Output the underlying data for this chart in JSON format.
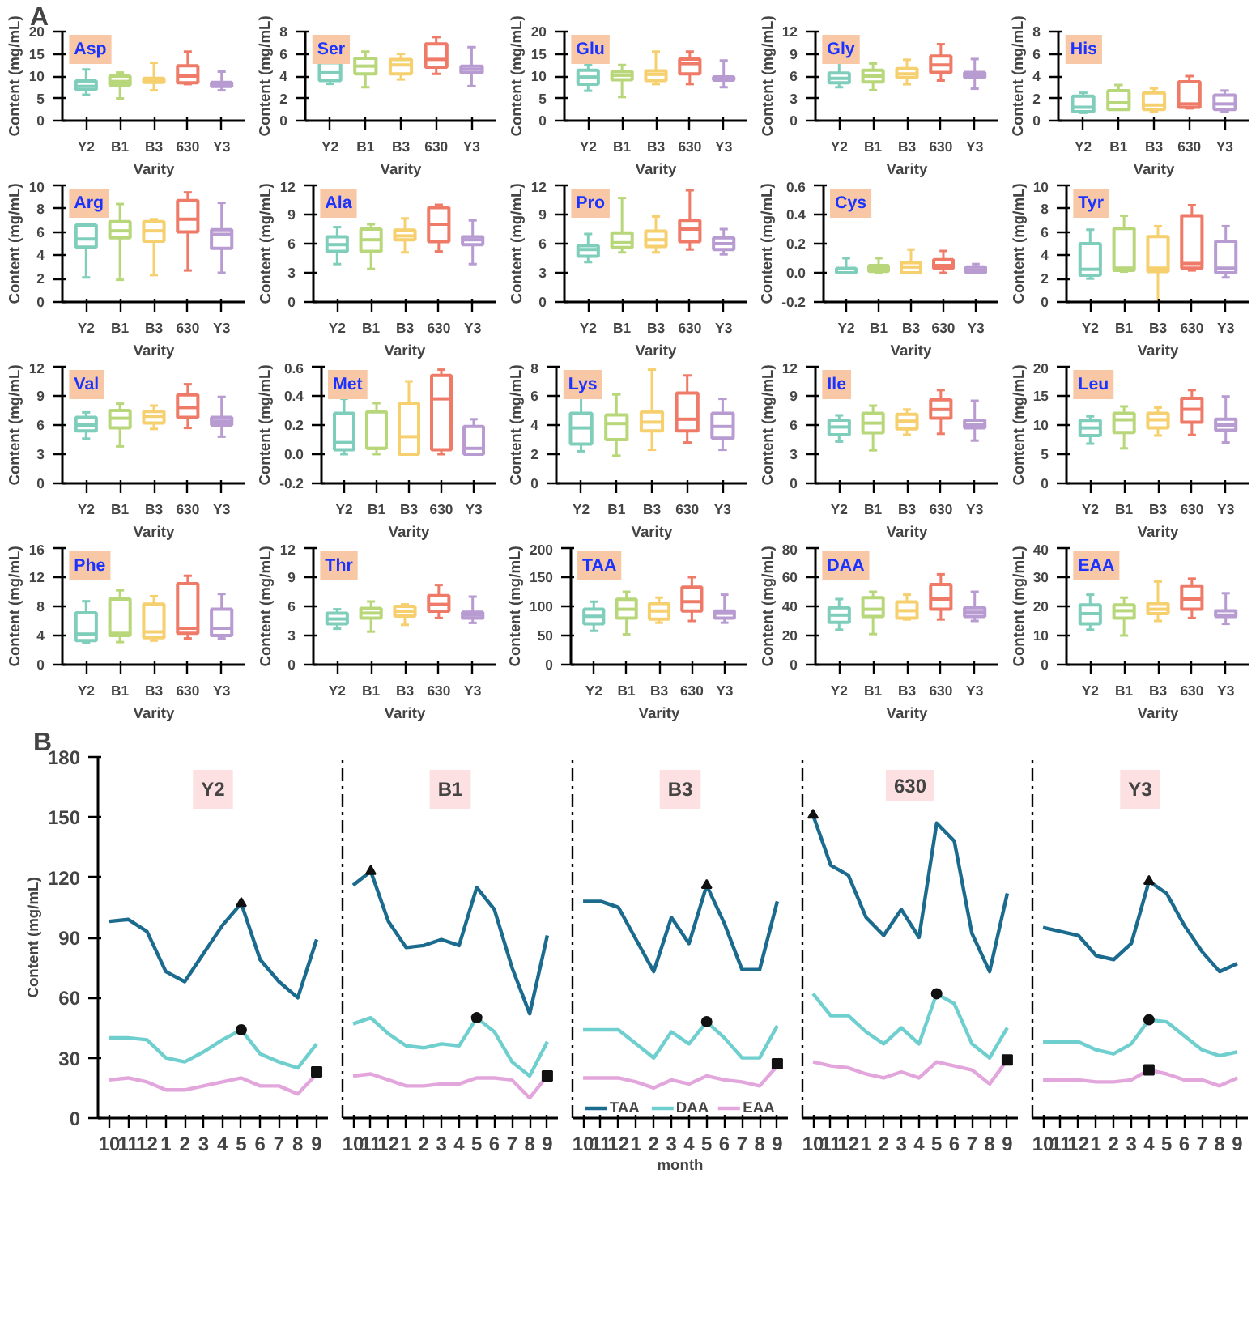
{
  "chart_data": [
    {
      "type": "box",
      "title": "Asp",
      "annotations": [
        "A"
      ],
      "xlabel": "Varity",
      "ylabel": "Content (mg/mL)",
      "categories": [
        "Y2",
        "B1",
        "B3",
        "630",
        "Y3"
      ],
      "colors": [
        "#7fcdbb",
        "#b7d77a",
        "#f6cf6e",
        "#ee7a67",
        "#b79bd1"
      ],
      "ylim": [
        0,
        20
      ],
      "yticks": [
        0,
        5,
        10,
        15,
        20
      ],
      "boxes": [
        {
          "low": 5.8,
          "q1": 7,
          "median": 7.7,
          "q3": 8.9,
          "high": 11.5
        },
        {
          "low": 5,
          "q1": 8,
          "median": 8.8,
          "q3": 10,
          "high": 10.8
        },
        {
          "low": 6.8,
          "q1": 8.6,
          "median": 9.2,
          "q3": 9.5,
          "high": 13
        },
        {
          "low": 8.2,
          "q1": 8.5,
          "median": 10,
          "q3": 12.3,
          "high": 15.5
        },
        {
          "low": 6.8,
          "q1": 7.7,
          "median": 8.2,
          "q3": 8.6,
          "high": 11
        }
      ]
    },
    {
      "type": "box",
      "title": "Ser",
      "xlabel": "Varity",
      "ylabel": "Content (mg/mL)",
      "categories": [
        "Y2",
        "B1",
        "B3",
        "630",
        "Y3"
      ],
      "colors": [
        "#7fcdbb",
        "#b7d77a",
        "#f6cf6e",
        "#ee7a67",
        "#b79bd1"
      ],
      "ylim": [
        0,
        8
      ],
      "yticks": [
        0,
        2,
        4,
        6,
        8
      ],
      "boxes": [
        {
          "low": 3.3,
          "q1": 3.6,
          "median": 4.3,
          "q3": 5.2,
          "high": 5.6
        },
        {
          "low": 3,
          "q1": 4.2,
          "median": 4.9,
          "q3": 5.6,
          "high": 6.2
        },
        {
          "low": 3.7,
          "q1": 4.2,
          "median": 5,
          "q3": 5.5,
          "high": 6
        },
        {
          "low": 4.2,
          "q1": 4.8,
          "median": 5.5,
          "q3": 6.9,
          "high": 7.5
        },
        {
          "low": 3.1,
          "q1": 4.3,
          "median": 4.6,
          "q3": 4.9,
          "high": 6.6
        }
      ]
    },
    {
      "type": "box",
      "title": "Glu",
      "xlabel": "Varity",
      "ylabel": "Content (mg/mL)",
      "categories": [
        "Y2",
        "B1",
        "B3",
        "630",
        "Y3"
      ],
      "colors": [
        "#7fcdbb",
        "#b7d77a",
        "#f6cf6e",
        "#ee7a67",
        "#b79bd1"
      ],
      "ylim": [
        0,
        20
      ],
      "yticks": [
        0,
        5,
        10,
        15,
        20
      ],
      "boxes": [
        {
          "low": 6.7,
          "q1": 8.2,
          "median": 9.8,
          "q3": 11.3,
          "high": 12.5
        },
        {
          "low": 5.3,
          "q1": 9.2,
          "median": 10.2,
          "q3": 11,
          "high": 12.5
        },
        {
          "low": 8.2,
          "q1": 9,
          "median": 10.4,
          "q3": 11.2,
          "high": 15.5
        },
        {
          "low": 8.2,
          "q1": 10.5,
          "median": 12.8,
          "q3": 13.8,
          "high": 15.5
        },
        {
          "low": 7.5,
          "q1": 9.1,
          "median": 9.5,
          "q3": 9.8,
          "high": 13.5
        }
      ]
    },
    {
      "type": "box",
      "title": "Gly",
      "xlabel": "Varity",
      "ylabel": "Content (mg/mL)",
      "categories": [
        "Y2",
        "B1",
        "B3",
        "630",
        "Y3"
      ],
      "colors": [
        "#7fcdbb",
        "#b7d77a",
        "#f6cf6e",
        "#ee7a67",
        "#b79bd1"
      ],
      "ylim": [
        0,
        12
      ],
      "yticks": [
        0,
        3,
        6,
        9,
        12
      ],
      "boxes": [
        {
          "low": 4.5,
          "q1": 5.1,
          "median": 5.7,
          "q3": 6.4,
          "high": 7.8
        },
        {
          "low": 4.1,
          "q1": 5.2,
          "median": 6,
          "q3": 6.8,
          "high": 7.7
        },
        {
          "low": 4.9,
          "q1": 5.8,
          "median": 6.3,
          "q3": 7,
          "high": 8.2
        },
        {
          "low": 5.4,
          "q1": 6.5,
          "median": 7.5,
          "q3": 8.7,
          "high": 10.3
        },
        {
          "low": 4.3,
          "q1": 5.8,
          "median": 6.1,
          "q3": 6.5,
          "high": 8.3
        }
      ]
    },
    {
      "type": "box",
      "title": "His",
      "xlabel": "Varity",
      "ylabel": "Content (mg/mL)",
      "categories": [
        "Y2",
        "B1",
        "B3",
        "630",
        "Y3"
      ],
      "colors": [
        "#7fcdbb",
        "#b7d77a",
        "#f6cf6e",
        "#ee7a67",
        "#b79bd1"
      ],
      "ylim": [
        0,
        8
      ],
      "yticks": [
        0,
        2,
        4,
        6,
        8
      ],
      "boxes": [
        {
          "low": 0.7,
          "q1": 0.8,
          "median": 1.2,
          "q3": 2.2,
          "high": 2.5
        },
        {
          "low": 1,
          "q1": 1,
          "median": 1.6,
          "q3": 2.7,
          "high": 3.2
        },
        {
          "low": 0.8,
          "q1": 1,
          "median": 1.4,
          "q3": 2.5,
          "high": 2.9
        },
        {
          "low": 1.1,
          "q1": 1.2,
          "median": 1.5,
          "q3": 3.5,
          "high": 4
        },
        {
          "low": 0.8,
          "q1": 1,
          "median": 1.5,
          "q3": 2.3,
          "high": 2.7
        }
      ]
    },
    {
      "type": "box",
      "title": "Arg",
      "xlabel": "Varity",
      "ylabel": "Content (mg/mL)",
      "categories": [
        "Y2",
        "B1",
        "B3",
        "630",
        "Y3"
      ],
      "colors": [
        "#7fcdbb",
        "#b7d77a",
        "#f6cf6e",
        "#ee7a67",
        "#b79bd1"
      ],
      "ylim": [
        0,
        10
      ],
      "yticks": [
        0,
        2,
        4,
        6,
        8,
        10
      ],
      "boxes": [
        {
          "low": 2.1,
          "q1": 4.7,
          "median": 5.4,
          "q3": 6.6,
          "high": 6.7
        },
        {
          "low": 1.9,
          "q1": 5.5,
          "median": 6.1,
          "q3": 6.9,
          "high": 8.4
        },
        {
          "low": 2.3,
          "q1": 5.2,
          "median": 6.1,
          "q3": 6.9,
          "high": 7.1
        },
        {
          "low": 2.7,
          "q1": 6,
          "median": 7.1,
          "q3": 8.7,
          "high": 9.4
        },
        {
          "low": 2.5,
          "q1": 4.6,
          "median": 5.8,
          "q3": 6.2,
          "high": 8.5
        }
      ]
    },
    {
      "type": "box",
      "title": "Ala",
      "xlabel": "Varity",
      "ylabel": "Content (mg/mL)",
      "categories": [
        "Y2",
        "B1",
        "B3",
        "630",
        "Y3"
      ],
      "colors": [
        "#7fcdbb",
        "#b7d77a",
        "#f6cf6e",
        "#ee7a67",
        "#b79bd1"
      ],
      "ylim": [
        0,
        12
      ],
      "yticks": [
        0,
        3,
        6,
        9,
        12
      ],
      "boxes": [
        {
          "low": 3.9,
          "q1": 5.2,
          "median": 5.9,
          "q3": 6.7,
          "high": 7.7
        },
        {
          "low": 3.4,
          "q1": 5.2,
          "median": 6.4,
          "q3": 7.5,
          "high": 8
        },
        {
          "low": 5.1,
          "q1": 6.4,
          "median": 6.8,
          "q3": 7.4,
          "high": 8.6
        },
        {
          "low": 5.2,
          "q1": 6.2,
          "median": 8,
          "q3": 9.7,
          "high": 10
        },
        {
          "low": 3.9,
          "q1": 5.9,
          "median": 6.4,
          "q3": 6.7,
          "high": 8.4
        }
      ]
    },
    {
      "type": "box",
      "title": "Pro",
      "xlabel": "Varity",
      "ylabel": "Content (mg/mL)",
      "categories": [
        "Y2",
        "B1",
        "B3",
        "630",
        "Y3"
      ],
      "colors": [
        "#7fcdbb",
        "#b7d77a",
        "#f6cf6e",
        "#ee7a67",
        "#b79bd1"
      ],
      "ylim": [
        0,
        12
      ],
      "yticks": [
        0,
        3,
        6,
        9,
        12
      ],
      "boxes": [
        {
          "low": 4.1,
          "q1": 4.7,
          "median": 5.4,
          "q3": 5.8,
          "high": 7
        },
        {
          "low": 5.1,
          "q1": 5.6,
          "median": 6.1,
          "q3": 7.1,
          "high": 10.7
        },
        {
          "low": 5.1,
          "q1": 5.7,
          "median": 6.4,
          "q3": 7.3,
          "high": 8.8
        },
        {
          "low": 5.4,
          "q1": 6.2,
          "median": 7.5,
          "q3": 8.4,
          "high": 11.5
        },
        {
          "low": 4.9,
          "q1": 5.4,
          "median": 6,
          "q3": 6.6,
          "high": 7.5
        }
      ]
    },
    {
      "type": "box",
      "title": "Cys",
      "xlabel": "Varity",
      "ylabel": "Content (mg/mL)",
      "categories": [
        "Y2",
        "B1",
        "B3",
        "630",
        "Y3"
      ],
      "colors": [
        "#7fcdbb",
        "#b7d77a",
        "#f6cf6e",
        "#ee7a67",
        "#b79bd1"
      ],
      "ylim": [
        -0.2,
        0.6
      ],
      "yticks": [
        {
          "value": -0.2,
          "label": "-0.2"
        },
        {
          "value": 0,
          "label": "0.0"
        },
        {
          "value": 0.2,
          "label": "0.2"
        },
        {
          "value": 0.4,
          "label": "0.4"
        },
        {
          "value": 0.6,
          "label": "0.6"
        }
      ],
      "boxes": [
        {
          "low": 0,
          "q1": 0,
          "median": 0,
          "q3": 0.03,
          "high": 0.1
        },
        {
          "low": 0,
          "q1": 0.01,
          "median": 0.03,
          "q3": 0.05,
          "high": 0.1
        },
        {
          "low": 0,
          "q1": 0,
          "median": 0.04,
          "q3": 0.07,
          "high": 0.16
        },
        {
          "low": 0,
          "q1": 0.03,
          "median": 0.05,
          "q3": 0.09,
          "high": 0.15
        },
        {
          "low": 0,
          "q1": 0,
          "median": 0.02,
          "q3": 0.04,
          "high": 0.06
        }
      ]
    },
    {
      "type": "box",
      "title": "Tyr",
      "xlabel": "Varity",
      "ylabel": "Content (mg/mL)",
      "categories": [
        "Y2",
        "B1",
        "B3",
        "630",
        "Y3"
      ],
      "colors": [
        "#7fcdbb",
        "#b7d77a",
        "#f6cf6e",
        "#ee7a67",
        "#b79bd1"
      ],
      "ylim": [
        0,
        10
      ],
      "yticks": [
        0,
        2,
        4,
        6,
        8,
        10
      ],
      "boxes": [
        {
          "low": 2,
          "q1": 2.3,
          "median": 2.8,
          "q3": 5,
          "high": 6.2
        },
        {
          "low": 2.6,
          "q1": 2.7,
          "median": 2.9,
          "q3": 6.3,
          "high": 7.4
        },
        {
          "low": 0,
          "q1": 2.6,
          "median": 2.9,
          "q3": 5.6,
          "high": 6.5
        },
        {
          "low": 2.7,
          "q1": 2.9,
          "median": 3.3,
          "q3": 7.4,
          "high": 8.3
        },
        {
          "low": 2.1,
          "q1": 2.5,
          "median": 2.9,
          "q3": 5.2,
          "high": 6.5
        }
      ]
    },
    {
      "type": "box",
      "title": "Val",
      "xlabel": "Varity",
      "ylabel": "Content (mg/mL)",
      "categories": [
        "Y2",
        "B1",
        "B3",
        "630",
        "Y3"
      ],
      "colors": [
        "#7fcdbb",
        "#b7d77a",
        "#f6cf6e",
        "#ee7a67",
        "#b79bd1"
      ],
      "ylim": [
        0,
        12
      ],
      "yticks": [
        0,
        3,
        6,
        9,
        12
      ],
      "boxes": [
        {
          "low": 4.6,
          "q1": 5.4,
          "median": 6,
          "q3": 6.8,
          "high": 7.3
        },
        {
          "low": 3.8,
          "q1": 5.7,
          "median": 6.7,
          "q3": 7.5,
          "high": 8.2
        },
        {
          "low": 5.6,
          "q1": 6.2,
          "median": 6.9,
          "q3": 7.4,
          "high": 8
        },
        {
          "low": 5.7,
          "q1": 6.8,
          "median": 7.8,
          "q3": 9.1,
          "high": 10.2
        },
        {
          "low": 4.8,
          "q1": 6,
          "median": 6.4,
          "q3": 6.8,
          "high": 8.9
        }
      ]
    },
    {
      "type": "box",
      "title": "Met",
      "xlabel": "Varity",
      "ylabel": "Content (mg/mL)",
      "categories": [
        "Y2",
        "B1",
        "B3",
        "630",
        "Y3"
      ],
      "colors": [
        "#7fcdbb",
        "#b7d77a",
        "#f6cf6e",
        "#ee7a67",
        "#b79bd1"
      ],
      "ylim": [
        -0.2,
        0.6
      ],
      "yticks": [
        {
          "value": -0.2,
          "label": "-0.2"
        },
        {
          "value": 0,
          "label": "0.0"
        },
        {
          "value": 0.2,
          "label": "0.2"
        },
        {
          "value": 0.4,
          "label": "0.4"
        },
        {
          "value": 0.6,
          "label": "0.6"
        }
      ],
      "boxes": [
        {
          "low": 0,
          "q1": 0.03,
          "median": 0.08,
          "q3": 0.28,
          "high": 0.38
        },
        {
          "low": 0,
          "q1": 0.04,
          "median": 0.04,
          "q3": 0.29,
          "high": 0.35
        },
        {
          "low": 0,
          "q1": 0,
          "median": 0.12,
          "q3": 0.35,
          "high": 0.5
        },
        {
          "low": 0,
          "q1": 0.03,
          "median": 0.38,
          "q3": 0.54,
          "high": 0.58
        },
        {
          "low": 0,
          "q1": 0,
          "median": 0.04,
          "q3": 0.19,
          "high": 0.24
        }
      ]
    },
    {
      "type": "box",
      "title": "Lys",
      "xlabel": "Varity",
      "ylabel": "Content (mg/mL)",
      "categories": [
        "Y2",
        "B1",
        "B3",
        "630",
        "Y3"
      ],
      "colors": [
        "#7fcdbb",
        "#b7d77a",
        "#f6cf6e",
        "#ee7a67",
        "#b79bd1"
      ],
      "ylim": [
        0,
        8
      ],
      "yticks": [
        0,
        2,
        4,
        6,
        8
      ],
      "boxes": [
        {
          "low": 2.2,
          "q1": 2.7,
          "median": 3.8,
          "q3": 4.8,
          "high": 7.4
        },
        {
          "low": 1.9,
          "q1": 3,
          "median": 4.1,
          "q3": 4.7,
          "high": 6.1
        },
        {
          "low": 2.3,
          "q1": 3.6,
          "median": 4.2,
          "q3": 4.9,
          "high": 7.8
        },
        {
          "low": 2.8,
          "q1": 3.6,
          "median": 4.4,
          "q3": 6.2,
          "high": 7.4
        },
        {
          "low": 2.3,
          "q1": 3.1,
          "median": 3.9,
          "q3": 4.8,
          "high": 5.8
        }
      ]
    },
    {
      "type": "box",
      "title": "Ile",
      "xlabel": "Varity",
      "ylabel": "Content (mg/mL)",
      "categories": [
        "Y2",
        "B1",
        "B3",
        "630",
        "Y3"
      ],
      "colors": [
        "#7fcdbb",
        "#b7d77a",
        "#f6cf6e",
        "#ee7a67",
        "#b79bd1"
      ],
      "ylim": [
        0,
        12
      ],
      "yticks": [
        0,
        3,
        6,
        9,
        12
      ],
      "boxes": [
        {
          "low": 4.3,
          "q1": 5,
          "median": 5.8,
          "q3": 6.5,
          "high": 7
        },
        {
          "low": 3.4,
          "q1": 5.2,
          "median": 6.2,
          "q3": 7.2,
          "high": 8
        },
        {
          "low": 5,
          "q1": 5.6,
          "median": 6.4,
          "q3": 7.1,
          "high": 7.6
        },
        {
          "low": 5.1,
          "q1": 6.7,
          "median": 7.6,
          "q3": 8.6,
          "high": 9.6
        },
        {
          "low": 4.4,
          "q1": 5.7,
          "median": 6,
          "q3": 6.5,
          "high": 8.5
        }
      ]
    },
    {
      "type": "box",
      "title": "Leu",
      "xlabel": "Varity",
      "ylabel": "Content (mg/mL)",
      "categories": [
        "Y2",
        "B1",
        "B3",
        "630",
        "Y3"
      ],
      "colors": [
        "#7fcdbb",
        "#b7d77a",
        "#f6cf6e",
        "#ee7a67",
        "#b79bd1"
      ],
      "ylim": [
        0,
        20
      ],
      "yticks": [
        0,
        5,
        10,
        15,
        20
      ],
      "boxes": [
        {
          "low": 6.8,
          "q1": 8.2,
          "median": 9.5,
          "q3": 10.8,
          "high": 11.5
        },
        {
          "low": 6,
          "q1": 8.7,
          "median": 10.9,
          "q3": 12,
          "high": 13.2
        },
        {
          "low": 8.2,
          "q1": 9.5,
          "median": 10.9,
          "q3": 12,
          "high": 13
        },
        {
          "low": 8.3,
          "q1": 10.5,
          "median": 12.7,
          "q3": 14.6,
          "high": 16
        },
        {
          "low": 7,
          "q1": 9.1,
          "median": 10,
          "q3": 11,
          "high": 14.9
        }
      ]
    },
    {
      "type": "box",
      "title": "Phe",
      "xlabel": "Varity",
      "ylabel": "Content (mg/mL)",
      "categories": [
        "Y2",
        "B1",
        "B3",
        "630",
        "Y3"
      ],
      "colors": [
        "#7fcdbb",
        "#b7d77a",
        "#f6cf6e",
        "#ee7a67",
        "#b79bd1"
      ],
      "ylim": [
        0,
        16
      ],
      "yticks": [
        0,
        4,
        8,
        12,
        16
      ],
      "boxes": [
        {
          "low": 3,
          "q1": 3.3,
          "median": 4.2,
          "q3": 7.1,
          "high": 8.7
        },
        {
          "low": 3.1,
          "q1": 4,
          "median": 4.3,
          "q3": 9,
          "high": 10.2
        },
        {
          "low": 3.3,
          "q1": 3.7,
          "median": 4.5,
          "q3": 8.3,
          "high": 9.4
        },
        {
          "low": 3.6,
          "q1": 4.3,
          "median": 5,
          "q3": 11.1,
          "high": 12.2
        },
        {
          "low": 3.6,
          "q1": 4,
          "median": 5,
          "q3": 7.6,
          "high": 9.7
        }
      ]
    },
    {
      "type": "box",
      "title": "Thr",
      "xlabel": "Varity",
      "ylabel": "Content (mg/mL)",
      "categories": [
        "Y2",
        "B1",
        "B3",
        "630",
        "Y3"
      ],
      "colors": [
        "#7fcdbb",
        "#b7d77a",
        "#f6cf6e",
        "#ee7a67",
        "#b79bd1"
      ],
      "ylim": [
        0,
        12
      ],
      "yticks": [
        0,
        3,
        6,
        9,
        12
      ],
      "boxes": [
        {
          "low": 3.7,
          "q1": 4.2,
          "median": 4.7,
          "q3": 5.3,
          "high": 5.7
        },
        {
          "low": 3.4,
          "q1": 4.8,
          "median": 5.3,
          "q3": 5.8,
          "high": 6.5
        },
        {
          "low": 4.1,
          "q1": 5,
          "median": 5.5,
          "q3": 6,
          "high": 6.2
        },
        {
          "low": 4.8,
          "q1": 5.5,
          "median": 6.2,
          "q3": 7.1,
          "high": 8.2
        },
        {
          "low": 4.3,
          "q1": 4.8,
          "median": 5.1,
          "q3": 5.4,
          "high": 7
        }
      ]
    },
    {
      "type": "box",
      "title": "TAA",
      "xlabel": "Varity",
      "ylabel": "Content (mg/mL)",
      "categories": [
        "Y2",
        "B1",
        "B3",
        "630",
        "Y3"
      ],
      "colors": [
        "#7fcdbb",
        "#b7d77a",
        "#f6cf6e",
        "#ee7a67",
        "#b79bd1"
      ],
      "ylim": [
        0,
        200
      ],
      "yticks": [
        0,
        50,
        100,
        150,
        200
      ],
      "boxes": [
        {
          "low": 58,
          "q1": 70,
          "median": 83,
          "q3": 95,
          "high": 108
        },
        {
          "low": 52,
          "q1": 80,
          "median": 95,
          "q3": 112,
          "high": 125
        },
        {
          "low": 72,
          "q1": 78,
          "median": 92,
          "q3": 105,
          "high": 115
        },
        {
          "low": 75,
          "q1": 92,
          "median": 108,
          "q3": 133,
          "high": 150
        },
        {
          "low": 72,
          "q1": 80,
          "median": 88,
          "q3": 92,
          "high": 120
        }
      ]
    },
    {
      "type": "box",
      "title": "DAA",
      "xlabel": "Varity",
      "ylabel": "Content (mg/mL)",
      "categories": [
        "Y2",
        "B1",
        "B3",
        "630",
        "Y3"
      ],
      "colors": [
        "#7fcdbb",
        "#b7d77a",
        "#f6cf6e",
        "#ee7a67",
        "#b79bd1"
      ],
      "ylim": [
        0,
        80
      ],
      "yticks": [
        0,
        20,
        40,
        60,
        80
      ],
      "boxes": [
        {
          "low": 24,
          "q1": 29,
          "median": 34,
          "q3": 39,
          "high": 45
        },
        {
          "low": 21,
          "q1": 33,
          "median": 38,
          "q3": 46,
          "high": 50
        },
        {
          "low": 31,
          "q1": 32,
          "median": 37,
          "q3": 43,
          "high": 48
        },
        {
          "low": 31,
          "q1": 38,
          "median": 45,
          "q3": 55,
          "high": 62
        },
        {
          "low": 30,
          "q1": 33,
          "median": 36,
          "q3": 39,
          "high": 50
        }
      ]
    },
    {
      "type": "box",
      "title": "EAA",
      "xlabel": "Varity",
      "ylabel": "Content (mg/mL)",
      "categories": [
        "Y2",
        "B1",
        "B3",
        "630",
        "Y3"
      ],
      "colors": [
        "#7fcdbb",
        "#b7d77a",
        "#f6cf6e",
        "#ee7a67",
        "#b79bd1"
      ],
      "ylim": [
        0,
        40
      ],
      "yticks": [
        0,
        10,
        20,
        30,
        40
      ],
      "boxes": [
        {
          "low": 12,
          "q1": 14,
          "median": 17.5,
          "q3": 20.5,
          "high": 24
        },
        {
          "low": 10,
          "q1": 16,
          "median": 18.5,
          "q3": 20.5,
          "high": 23
        },
        {
          "low": 15,
          "q1": 17.5,
          "median": 19,
          "q3": 21,
          "high": 28.5
        },
        {
          "low": 16,
          "q1": 19,
          "median": 22.5,
          "q3": 27,
          "high": 29.5
        },
        {
          "low": 14,
          "q1": 16.5,
          "median": 17,
          "q3": 18.5,
          "high": 24.5
        }
      ]
    },
    {
      "type": "line",
      "title": "Y2",
      "annotations": [
        "B"
      ],
      "ylabel": "Content (mg/mL)",
      "ylim": [
        0,
        180
      ],
      "yticks": [
        0,
        30,
        60,
        90,
        120,
        150,
        180
      ],
      "categories": [
        "10",
        "11",
        "12",
        "1",
        "2",
        "3",
        "4",
        "5",
        "6",
        "7",
        "8",
        "9"
      ],
      "series": [
        {
          "color": "#1b6b8f",
          "values": [
            98,
            99,
            93,
            73,
            68,
            82,
            96,
            107,
            79,
            68,
            60,
            89
          ]
        },
        {
          "color": "#6fcfcf",
          "values": [
            40,
            40,
            39,
            30,
            28,
            33,
            39,
            44,
            32,
            28,
            25,
            37
          ]
        },
        {
          "color": "#e3a6dc",
          "values": [
            19,
            20,
            18,
            14,
            14,
            16,
            18,
            20,
            16,
            16,
            12,
            22
          ]
        },
        {
          "type": "scatter",
          "marker": "triangle",
          "color": "#111111",
          "x": [
            "5"
          ],
          "values": [
            107
          ]
        },
        {
          "type": "scatter",
          "marker": "circle",
          "color": "#111111",
          "x": [
            "5"
          ],
          "values": [
            44
          ]
        },
        {
          "type": "scatter",
          "marker": "square",
          "color": "#111111",
          "x": [
            "9"
          ],
          "values": [
            23
          ]
        }
      ]
    },
    {
      "type": "line",
      "title": "B1",
      "tick_labels": "x",
      "ylim": [
        0,
        180
      ],
      "yticks": [
        0,
        30,
        60,
        90,
        120,
        150,
        180
      ],
      "categories": [
        "10",
        "11",
        "12",
        "1",
        "2",
        "3",
        "4",
        "5",
        "6",
        "7",
        "8",
        "9"
      ],
      "series": [
        {
          "color": "#1b6b8f",
          "values": [
            116,
            123,
            98,
            85,
            86,
            89,
            86,
            115,
            104,
            75,
            52,
            91
          ]
        },
        {
          "color": "#6fcfcf",
          "values": [
            47,
            50,
            42,
            36,
            35,
            37,
            36,
            50,
            43,
            28,
            21,
            38
          ]
        },
        {
          "color": "#e3a6dc",
          "values": [
            21,
            22,
            19,
            16,
            16,
            17,
            17,
            20,
            20,
            19,
            10,
            21
          ]
        },
        {
          "type": "scatter",
          "marker": "triangle",
          "color": "#111111",
          "x": [
            "11"
          ],
          "values": [
            123
          ]
        },
        {
          "type": "scatter",
          "marker": "circle",
          "color": "#111111",
          "x": [
            "5"
          ],
          "values": [
            50
          ]
        },
        {
          "type": "scatter",
          "marker": "square",
          "color": "#111111",
          "x": [
            "9"
          ],
          "values": [
            21
          ]
        }
      ]
    },
    {
      "type": "line",
      "title": "B3",
      "tick_labels": "x",
      "xlabel": "month",
      "legend": "bottom",
      "ylim": [
        0,
        180
      ],
      "yticks": [
        0,
        30,
        60,
        90,
        120,
        150,
        180
      ],
      "categories": [
        "10",
        "11",
        "12",
        "1",
        "2",
        "3",
        "4",
        "5",
        "6",
        "7",
        "8",
        "9"
      ],
      "series": [
        {
          "name": "TAA",
          "color": "#1b6b8f",
          "values": [
            108,
            108,
            105,
            89,
            73,
            100,
            87,
            116,
            97,
            74,
            74,
            108
          ]
        },
        {
          "name": "DAA",
          "color": "#6fcfcf",
          "values": [
            44,
            44,
            44,
            37,
            30,
            43,
            37,
            48,
            40,
            30,
            30,
            46
          ]
        },
        {
          "name": "EAA",
          "color": "#e3a6dc",
          "values": [
            20,
            20,
            20,
            18,
            15,
            19,
            17,
            21,
            19,
            18,
            16,
            26
          ]
        },
        {
          "type": "scatter",
          "marker": "triangle",
          "color": "#111111",
          "x": [
            "5"
          ],
          "values": [
            116
          ]
        },
        {
          "type": "scatter",
          "marker": "circle",
          "color": "#111111",
          "x": [
            "5"
          ],
          "values": [
            48
          ]
        },
        {
          "type": "scatter",
          "marker": "square",
          "color": "#111111",
          "x": [
            "9"
          ],
          "values": [
            27
          ]
        }
      ]
    },
    {
      "type": "line",
      "title": "630",
      "tick_labels": "x",
      "ylim": [
        0,
        180
      ],
      "yticks": [
        0,
        30,
        60,
        90,
        120,
        150,
        180
      ],
      "categories": [
        "10",
        "11",
        "12",
        "1",
        "2",
        "3",
        "4",
        "5",
        "6",
        "7",
        "8",
        "9"
      ],
      "series": [
        {
          "color": "#1b6b8f",
          "values": [
            151,
            126,
            121,
            100,
            91,
            104,
            90,
            147,
            138,
            92,
            73,
            112
          ]
        },
        {
          "color": "#6fcfcf",
          "values": [
            62,
            51,
            51,
            43,
            37,
            45,
            37,
            62,
            57,
            37,
            30,
            45
          ]
        },
        {
          "color": "#e3a6dc",
          "values": [
            28,
            26,
            25,
            22,
            20,
            23,
            20,
            28,
            26,
            24,
            17,
            29
          ]
        },
        {
          "type": "scatter",
          "marker": "triangle",
          "color": "#111111",
          "x": [
            "10"
          ],
          "values": [
            151
          ]
        },
        {
          "type": "scatter",
          "marker": "circle",
          "color": "#111111",
          "x": [
            "5"
          ],
          "values": [
            62
          ]
        },
        {
          "type": "scatter",
          "marker": "square",
          "color": "#111111",
          "x": [
            "9"
          ],
          "values": [
            29
          ]
        }
      ]
    },
    {
      "type": "line",
      "title": "Y3",
      "tick_labels": "x",
      "ylim": [
        0,
        180
      ],
      "yticks": [
        0,
        30,
        60,
        90,
        120,
        150,
        180
      ],
      "categories": [
        "10",
        "11",
        "12",
        "1",
        "2",
        "3",
        "4",
        "5",
        "6",
        "7",
        "8",
        "9"
      ],
      "series": [
        {
          "color": "#1b6b8f",
          "values": [
            95,
            93,
            91,
            81,
            79,
            87,
            118,
            112,
            96,
            83,
            73,
            77
          ]
        },
        {
          "color": "#6fcfcf",
          "values": [
            38,
            38,
            38,
            34,
            32,
            37,
            49,
            48,
            41,
            34,
            31,
            33
          ]
        },
        {
          "color": "#e3a6dc",
          "values": [
            19,
            19,
            19,
            18,
            18,
            19,
            24,
            22,
            19,
            19,
            16,
            20
          ]
        },
        {
          "type": "scatter",
          "marker": "triangle",
          "color": "#111111",
          "x": [
            "4"
          ],
          "values": [
            118
          ]
        },
        {
          "type": "scatter",
          "marker": "circle",
          "color": "#111111",
          "x": [
            "4"
          ],
          "values": [
            49
          ]
        },
        {
          "type": "scatter",
          "marker": "square",
          "color": "#111111",
          "x": [
            "4"
          ],
          "values": [
            24
          ]
        }
      ]
    }
  ]
}
